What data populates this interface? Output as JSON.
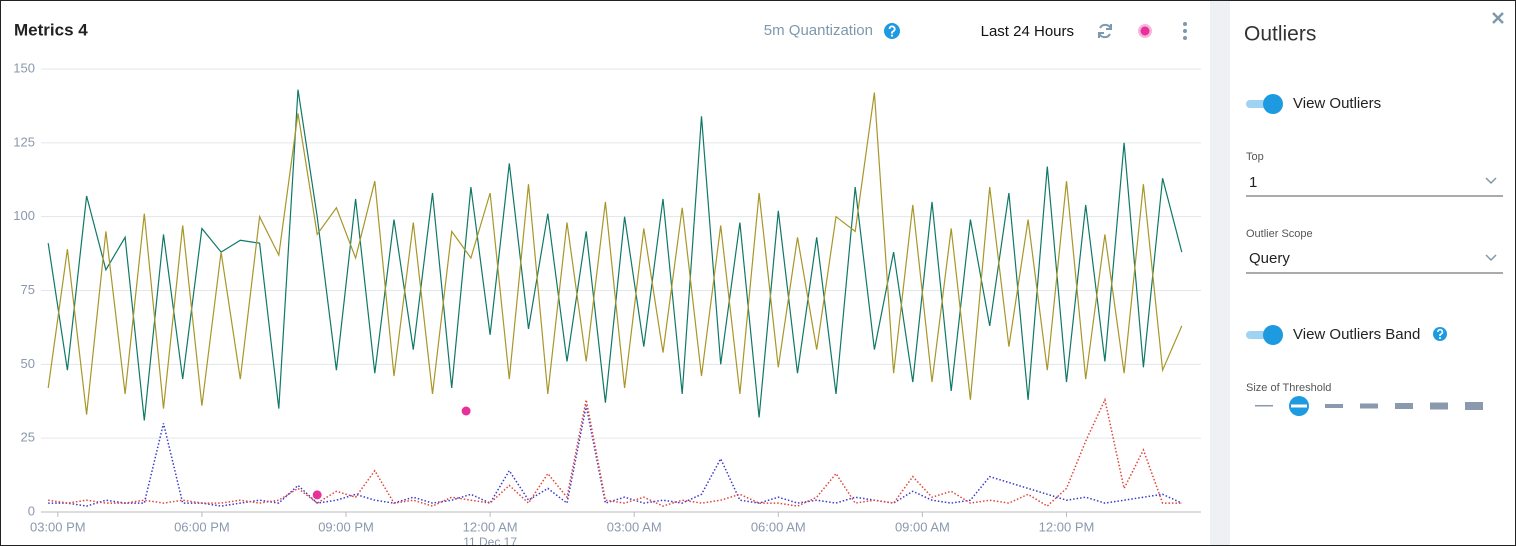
{
  "chart_data": {
    "type": "line",
    "title": "Metrics 4",
    "x": [
      14.8,
      15.2,
      15.6,
      16.0,
      16.4,
      16.8,
      17.2,
      17.6,
      18.0,
      18.4,
      18.8,
      19.2,
      19.6,
      20.0,
      20.4,
      20.8,
      21.2,
      21.6,
      22.0,
      22.4,
      22.8,
      23.2,
      23.6,
      24.0,
      24.4,
      24.8,
      25.2,
      25.6,
      26.0,
      26.4,
      26.8,
      27.2,
      27.6,
      28.0,
      28.4,
      28.8,
      29.2,
      29.6,
      30.0,
      30.4,
      30.8,
      31.2,
      31.6,
      32.0,
      32.4,
      32.8,
      33.2,
      33.6,
      34.0,
      34.4,
      34.8,
      35.2,
      35.6,
      36.0,
      36.4,
      36.8,
      37.2,
      37.6,
      38.0,
      38.4
    ],
    "series": [
      {
        "color": "#0f7866",
        "style": "solid",
        "values": [
          91,
          48,
          107,
          82,
          93,
          31,
          94,
          45,
          96,
          88,
          92,
          91,
          35,
          143,
          100,
          48,
          106,
          47,
          99,
          55,
          108,
          42,
          110,
          60,
          118,
          62,
          101,
          51,
          95,
          37,
          100,
          56,
          106,
          40,
          134,
          50,
          98,
          32,
          102,
          47,
          93,
          40,
          110,
          55,
          88,
          44,
          105,
          41,
          99,
          63,
          108,
          38,
          117,
          44,
          104,
          51,
          125,
          49,
          113,
          88
        ]
      },
      {
        "color": "#a8962a",
        "style": "solid",
        "values": [
          42,
          89,
          33,
          95,
          40,
          101,
          35,
          97,
          36,
          88,
          45,
          100,
          87,
          135,
          94,
          103,
          86,
          112,
          46,
          98,
          40,
          95,
          86,
          108,
          45,
          111,
          40,
          98,
          51,
          105,
          42,
          96,
          54,
          103,
          46,
          97,
          40,
          108,
          49,
          93,
          55,
          100,
          95,
          142,
          47,
          104,
          44,
          96,
          38,
          110,
          56,
          99,
          48,
          112,
          45,
          94,
          47,
          111,
          48,
          63
        ]
      },
      {
        "color": "#3a3ad0",
        "style": "dotted",
        "values": [
          3,
          3,
          2,
          4,
          3,
          3,
          30,
          3,
          3,
          2,
          3,
          4,
          3,
          9,
          3,
          4,
          6,
          4,
          3,
          5,
          3,
          4,
          6,
          3,
          14,
          4,
          8,
          3,
          36,
          3,
          5,
          3,
          4,
          3,
          6,
          18,
          4,
          3,
          5,
          3,
          4,
          3,
          5,
          4,
          3,
          7,
          4,
          3,
          4,
          12,
          10,
          8,
          6,
          4,
          5,
          3,
          4,
          5,
          6,
          3
        ]
      },
      {
        "color": "#e0453a",
        "style": "dotted",
        "values": [
          4,
          3,
          4,
          3,
          3,
          4,
          3,
          4,
          3,
          3,
          4,
          3,
          4,
          8,
          3,
          7,
          5,
          14,
          3,
          4,
          2,
          5,
          4,
          3,
          9,
          3,
          13,
          5,
          38,
          4,
          3,
          5,
          2,
          4,
          3,
          4,
          6,
          3,
          3,
          2,
          5,
          13,
          3,
          4,
          3,
          12,
          5,
          7,
          3,
          4,
          3,
          6,
          2,
          8,
          24,
          38,
          8,
          21,
          3,
          3
        ]
      }
    ],
    "outliers": {
      "color": "#e8309a",
      "x": [
        20.4,
        23.5
      ],
      "y": [
        5.8,
        34.2
      ]
    },
    "xlim": [
      14.4,
      38.8
    ],
    "xticks": [
      {
        "value": 15,
        "label": "03:00 PM"
      },
      {
        "value": 18,
        "label": "06:00 PM"
      },
      {
        "value": 21,
        "label": "09:00 PM"
      },
      {
        "value": 24,
        "label": "12:00 AM",
        "sublabel": "11 Dec 17"
      },
      {
        "value": 27,
        "label": "03:00 AM"
      },
      {
        "value": 30,
        "label": "06:00 AM"
      },
      {
        "value": 33,
        "label": "09:00 AM"
      },
      {
        "value": 36,
        "label": "12:00 PM"
      }
    ],
    "ylim": [
      0,
      150
    ],
    "yticks": [
      0,
      25,
      50,
      75,
      100,
      125,
      150
    ],
    "grid": true
  },
  "toolbar": {
    "quantization": "5m Quantization",
    "range": "Last 24 Hours"
  },
  "panel": {
    "title": "Outliers",
    "view_outliers": "View Outliers",
    "top_label": "Top",
    "top_value": "1",
    "scope_label": "Outlier Scope",
    "scope_value": "Query",
    "view_band": "View Outliers Band",
    "threshold_label": "Size of Threshold"
  }
}
